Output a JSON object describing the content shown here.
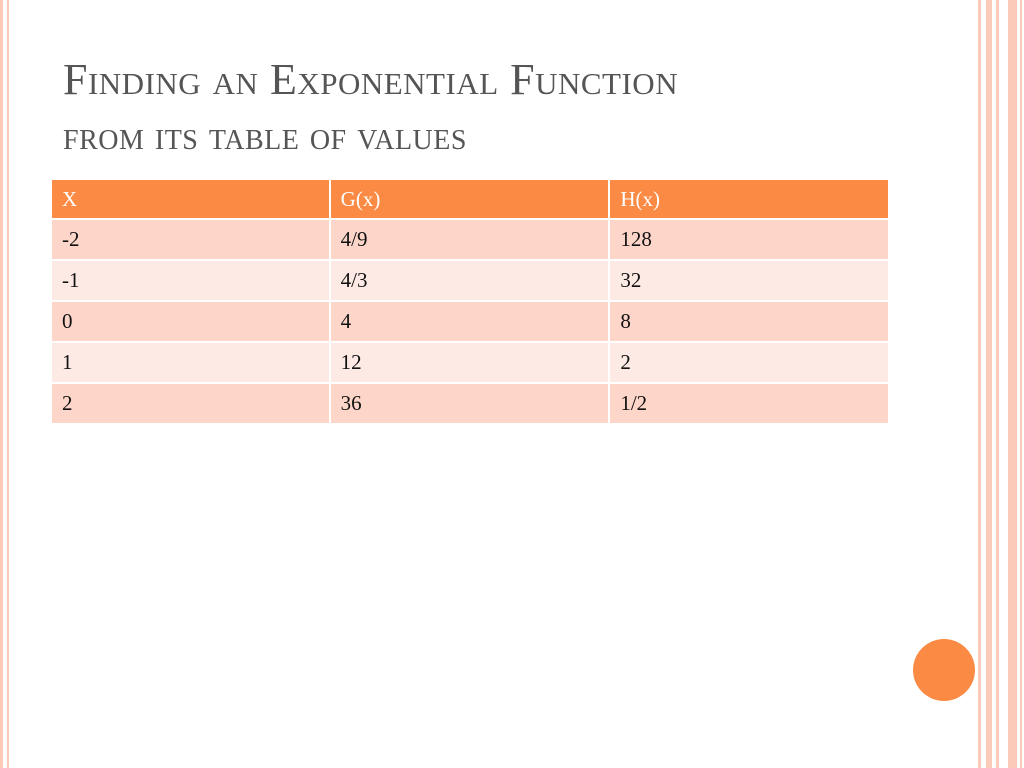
{
  "title": {
    "lines": [
      "Finding an Exponential Function",
      "from its table of values"
    ]
  },
  "table": {
    "header": [
      "X",
      "G(x)",
      "H(x)"
    ],
    "rows": [
      [
        "-2",
        "4/9",
        "128"
      ],
      [
        "-1",
        "4/3",
        "32"
      ],
      [
        "0",
        "4",
        "8"
      ],
      [
        "1",
        "12",
        "2"
      ],
      [
        "2",
        "36",
        "1/2"
      ]
    ]
  }
}
